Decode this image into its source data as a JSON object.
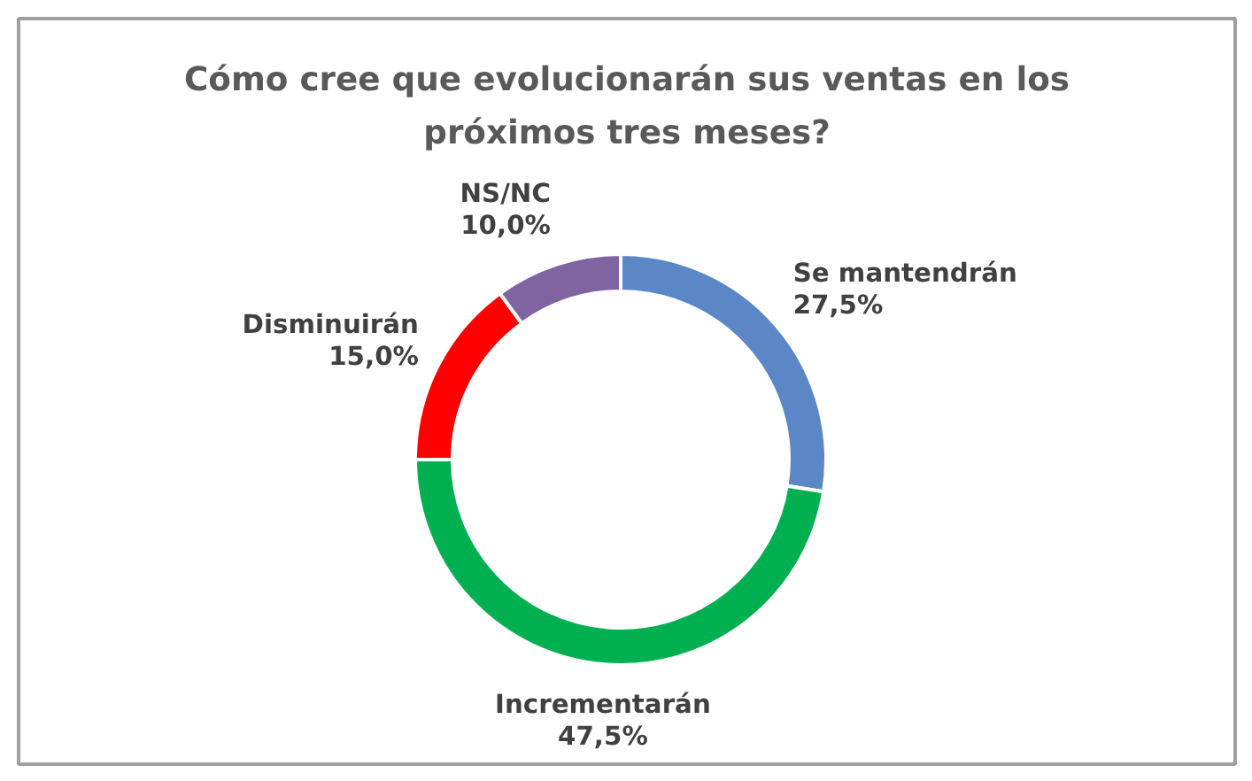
{
  "chart_data": {
    "type": "donut",
    "title": "Cómo cree que evolucionarán sus ventas en los próximos tres meses?",
    "categories": [
      "Se mantendrán",
      "Incrementarán",
      "Disminuirán",
      "NS/NC"
    ],
    "values": [
      27.5,
      47.5,
      15.0,
      10.0
    ],
    "colors": [
      "#5b87c6",
      "#00b050",
      "#ff0000",
      "#8064a2"
    ],
    "value_labels": [
      "27,5%",
      "47,5%",
      "15,0%",
      "10,0%"
    ]
  }
}
